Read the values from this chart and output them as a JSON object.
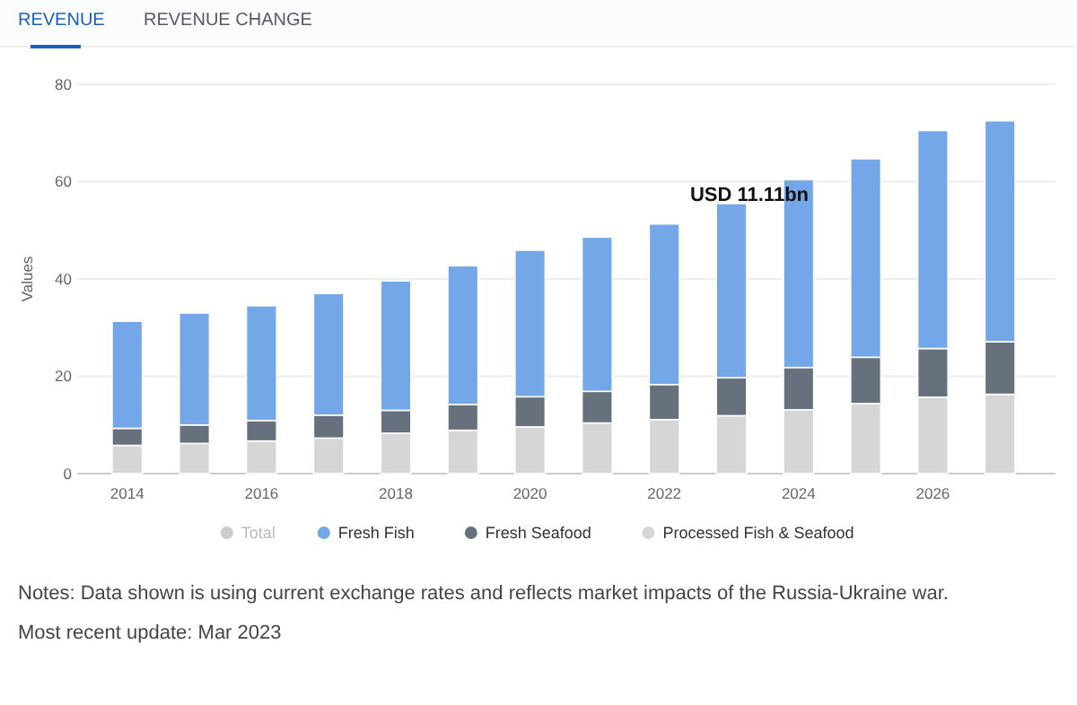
{
  "chart_data": {
    "type": "bar",
    "stacked": true,
    "ylabel": "Values",
    "categories": [
      "2014",
      null,
      "2016",
      null,
      "2018",
      null,
      "2020",
      null,
      "2022",
      null,
      "2024",
      null,
      "2026",
      null
    ],
    "series": [
      {
        "name": "Processed Fish & Seafood",
        "color": "#d6d6d6",
        "values": [
          5.8,
          6.2,
          6.7,
          7.3,
          8.3,
          8.9,
          9.6,
          10.4,
          11.1,
          11.9,
          13.1,
          14.4,
          15.7,
          16.3
        ]
      },
      {
        "name": "Fresh Seafood",
        "color": "#66717d",
        "values": [
          3.5,
          3.8,
          4.2,
          4.7,
          4.7,
          5.3,
          6.2,
          6.5,
          7.2,
          7.8,
          8.7,
          9.5,
          10.0,
          10.8
        ]
      },
      {
        "name": "Fresh Fish",
        "color": "#74a7e8",
        "values": [
          22.0,
          23.0,
          23.6,
          25.0,
          26.6,
          28.5,
          30.1,
          31.7,
          33.0,
          35.8,
          38.6,
          40.8,
          44.8,
          45.4
        ]
      },
      {
        "name": "Total",
        "color": "#cccccc",
        "values": [
          null,
          null,
          null,
          null,
          null,
          null,
          null,
          null,
          null,
          null,
          null,
          null,
          null,
          null
        ]
      }
    ],
    "ylim": [
      0,
      80
    ],
    "yticks": [
      0,
      20,
      40,
      60,
      80
    ],
    "grid": "y",
    "legend": "bottom",
    "annotations": [
      "REVENUE",
      "REVENUE CHANGE",
      "USD 11.11bn",
      "Notes: Data shown is using current exchange rates and reflects market impacts of the Russia-Ukraine war.",
      "Most recent update: Mar 2023"
    ]
  }
}
